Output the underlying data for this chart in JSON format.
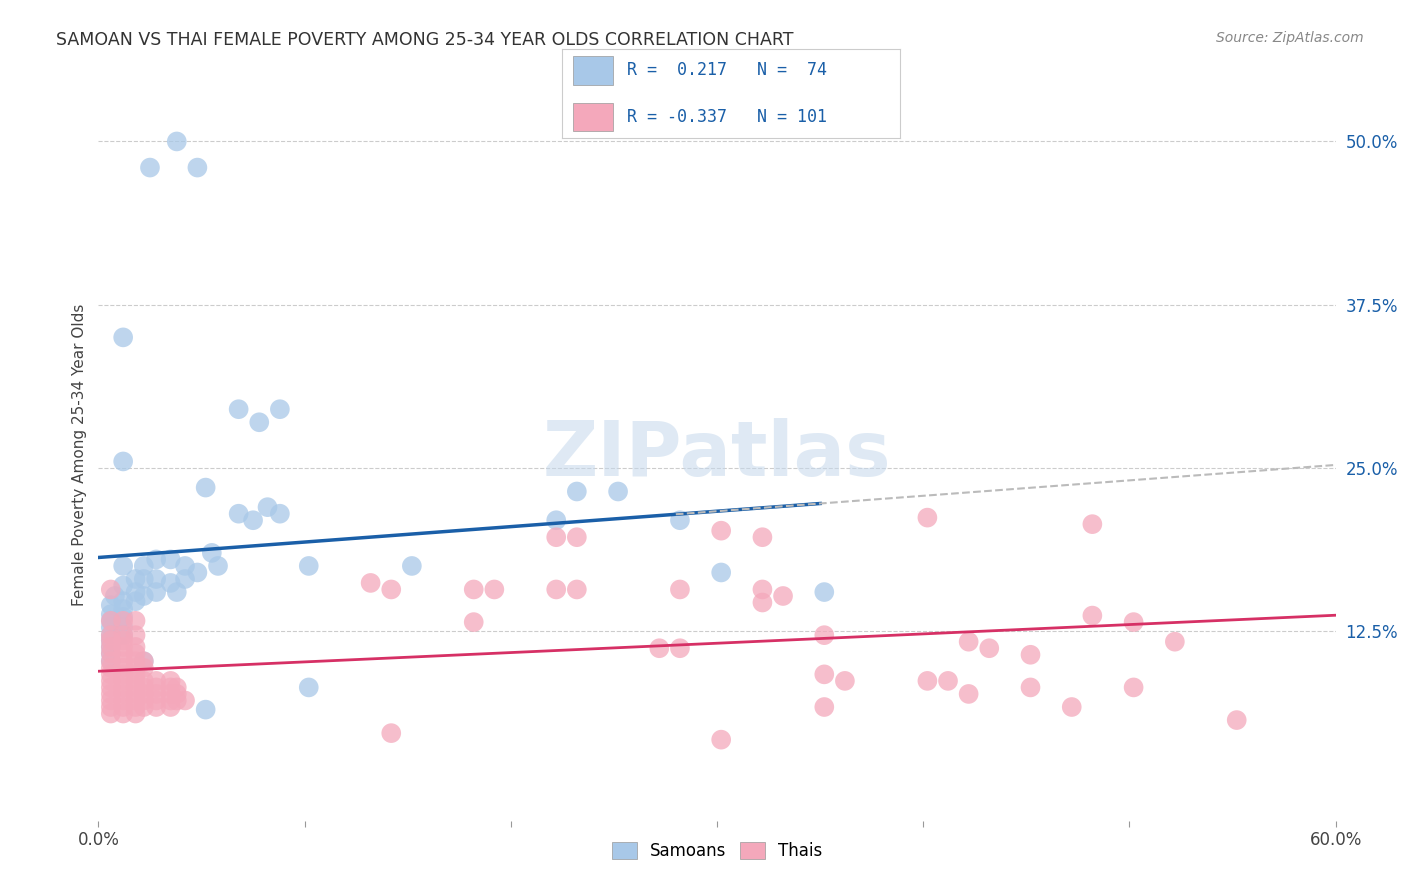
{
  "title": "SAMOAN VS THAI FEMALE POVERTY AMONG 25-34 YEAR OLDS CORRELATION CHART",
  "source": "Source: ZipAtlas.com",
  "ylabel": "Female Poverty Among 25-34 Year Olds",
  "xlim": [
    0.0,
    0.6
  ],
  "ylim": [
    -0.02,
    0.54
  ],
  "samoan_color": "#a8c8e8",
  "thai_color": "#f4a8bb",
  "samoan_line_color": "#1a5fa8",
  "thai_line_color": "#d63065",
  "dashed_color": "#bbbbbb",
  "background_color": "#ffffff",
  "grid_color": "#cccccc",
  "watermark": "ZIPatlas",
  "right_ytick_vals": [
    0.5,
    0.375,
    0.25,
    0.125
  ],
  "right_ytick_labels": [
    "50.0%",
    "37.5%",
    "25.0%",
    "12.5%"
  ],
  "samoan_points": [
    [
      0.025,
      0.48
    ],
    [
      0.038,
      0.5
    ],
    [
      0.048,
      0.48
    ],
    [
      0.012,
      0.35
    ],
    [
      0.068,
      0.295
    ],
    [
      0.078,
      0.285
    ],
    [
      0.088,
      0.295
    ],
    [
      0.012,
      0.255
    ],
    [
      0.052,
      0.235
    ],
    [
      0.068,
      0.215
    ],
    [
      0.075,
      0.21
    ],
    [
      0.082,
      0.22
    ],
    [
      0.088,
      0.215
    ],
    [
      0.012,
      0.175
    ],
    [
      0.022,
      0.175
    ],
    [
      0.028,
      0.18
    ],
    [
      0.035,
      0.18
    ],
    [
      0.042,
      0.175
    ],
    [
      0.048,
      0.17
    ],
    [
      0.055,
      0.185
    ],
    [
      0.058,
      0.175
    ],
    [
      0.018,
      0.165
    ],
    [
      0.022,
      0.165
    ],
    [
      0.028,
      0.165
    ],
    [
      0.035,
      0.162
    ],
    [
      0.038,
      0.155
    ],
    [
      0.042,
      0.165
    ],
    [
      0.012,
      0.16
    ],
    [
      0.018,
      0.155
    ],
    [
      0.022,
      0.152
    ],
    [
      0.028,
      0.155
    ],
    [
      0.008,
      0.152
    ],
    [
      0.012,
      0.148
    ],
    [
      0.018,
      0.148
    ],
    [
      0.006,
      0.145
    ],
    [
      0.012,
      0.142
    ],
    [
      0.006,
      0.138
    ],
    [
      0.012,
      0.136
    ],
    [
      0.006,
      0.133
    ],
    [
      0.006,
      0.128
    ],
    [
      0.012,
      0.128
    ],
    [
      0.006,
      0.122
    ],
    [
      0.012,
      0.122
    ],
    [
      0.006,
      0.118
    ],
    [
      0.006,
      0.113
    ],
    [
      0.006,
      0.108
    ],
    [
      0.006,
      0.102
    ],
    [
      0.022,
      0.102
    ],
    [
      0.102,
      0.175
    ],
    [
      0.152,
      0.175
    ],
    [
      0.232,
      0.232
    ],
    [
      0.252,
      0.232
    ],
    [
      0.222,
      0.21
    ],
    [
      0.282,
      0.21
    ],
    [
      0.302,
      0.17
    ],
    [
      0.352,
      0.155
    ],
    [
      0.052,
      0.065
    ],
    [
      0.102,
      0.082
    ]
  ],
  "thai_points": [
    [
      0.006,
      0.133
    ],
    [
      0.012,
      0.133
    ],
    [
      0.018,
      0.133
    ],
    [
      0.006,
      0.122
    ],
    [
      0.012,
      0.122
    ],
    [
      0.018,
      0.122
    ],
    [
      0.006,
      0.118
    ],
    [
      0.012,
      0.118
    ],
    [
      0.006,
      0.113
    ],
    [
      0.012,
      0.113
    ],
    [
      0.018,
      0.113
    ],
    [
      0.006,
      0.108
    ],
    [
      0.012,
      0.108
    ],
    [
      0.018,
      0.108
    ],
    [
      0.006,
      0.102
    ],
    [
      0.012,
      0.102
    ],
    [
      0.018,
      0.102
    ],
    [
      0.022,
      0.102
    ],
    [
      0.006,
      0.097
    ],
    [
      0.012,
      0.097
    ],
    [
      0.018,
      0.097
    ],
    [
      0.022,
      0.097
    ],
    [
      0.006,
      0.092
    ],
    [
      0.012,
      0.092
    ],
    [
      0.018,
      0.092
    ],
    [
      0.006,
      0.087
    ],
    [
      0.012,
      0.087
    ],
    [
      0.018,
      0.087
    ],
    [
      0.022,
      0.087
    ],
    [
      0.028,
      0.087
    ],
    [
      0.035,
      0.087
    ],
    [
      0.006,
      0.082
    ],
    [
      0.012,
      0.082
    ],
    [
      0.018,
      0.082
    ],
    [
      0.022,
      0.082
    ],
    [
      0.028,
      0.082
    ],
    [
      0.035,
      0.082
    ],
    [
      0.038,
      0.082
    ],
    [
      0.006,
      0.077
    ],
    [
      0.012,
      0.077
    ],
    [
      0.018,
      0.077
    ],
    [
      0.022,
      0.077
    ],
    [
      0.028,
      0.077
    ],
    [
      0.035,
      0.077
    ],
    [
      0.038,
      0.077
    ],
    [
      0.006,
      0.072
    ],
    [
      0.012,
      0.072
    ],
    [
      0.018,
      0.072
    ],
    [
      0.022,
      0.072
    ],
    [
      0.028,
      0.072
    ],
    [
      0.035,
      0.072
    ],
    [
      0.038,
      0.072
    ],
    [
      0.042,
      0.072
    ],
    [
      0.006,
      0.067
    ],
    [
      0.012,
      0.067
    ],
    [
      0.018,
      0.067
    ],
    [
      0.022,
      0.067
    ],
    [
      0.028,
      0.067
    ],
    [
      0.035,
      0.067
    ],
    [
      0.006,
      0.062
    ],
    [
      0.012,
      0.062
    ],
    [
      0.018,
      0.062
    ],
    [
      0.132,
      0.162
    ],
    [
      0.142,
      0.157
    ],
    [
      0.182,
      0.157
    ],
    [
      0.192,
      0.157
    ],
    [
      0.222,
      0.157
    ],
    [
      0.232,
      0.157
    ],
    [
      0.282,
      0.157
    ],
    [
      0.322,
      0.157
    ],
    [
      0.332,
      0.152
    ],
    [
      0.182,
      0.132
    ],
    [
      0.322,
      0.147
    ],
    [
      0.302,
      0.202
    ],
    [
      0.322,
      0.197
    ],
    [
      0.222,
      0.197
    ],
    [
      0.232,
      0.197
    ],
    [
      0.402,
      0.212
    ],
    [
      0.482,
      0.207
    ],
    [
      0.482,
      0.137
    ],
    [
      0.502,
      0.132
    ],
    [
      0.522,
      0.117
    ],
    [
      0.352,
      0.122
    ],
    [
      0.422,
      0.117
    ],
    [
      0.432,
      0.112
    ],
    [
      0.452,
      0.107
    ],
    [
      0.352,
      0.092
    ],
    [
      0.362,
      0.087
    ],
    [
      0.402,
      0.087
    ],
    [
      0.412,
      0.087
    ],
    [
      0.452,
      0.082
    ],
    [
      0.502,
      0.082
    ],
    [
      0.352,
      0.067
    ],
    [
      0.472,
      0.067
    ],
    [
      0.272,
      0.112
    ],
    [
      0.282,
      0.112
    ],
    [
      0.422,
      0.077
    ],
    [
      0.552,
      0.057
    ],
    [
      0.142,
      0.047
    ],
    [
      0.302,
      0.042
    ],
    [
      0.006,
      0.157
    ]
  ]
}
